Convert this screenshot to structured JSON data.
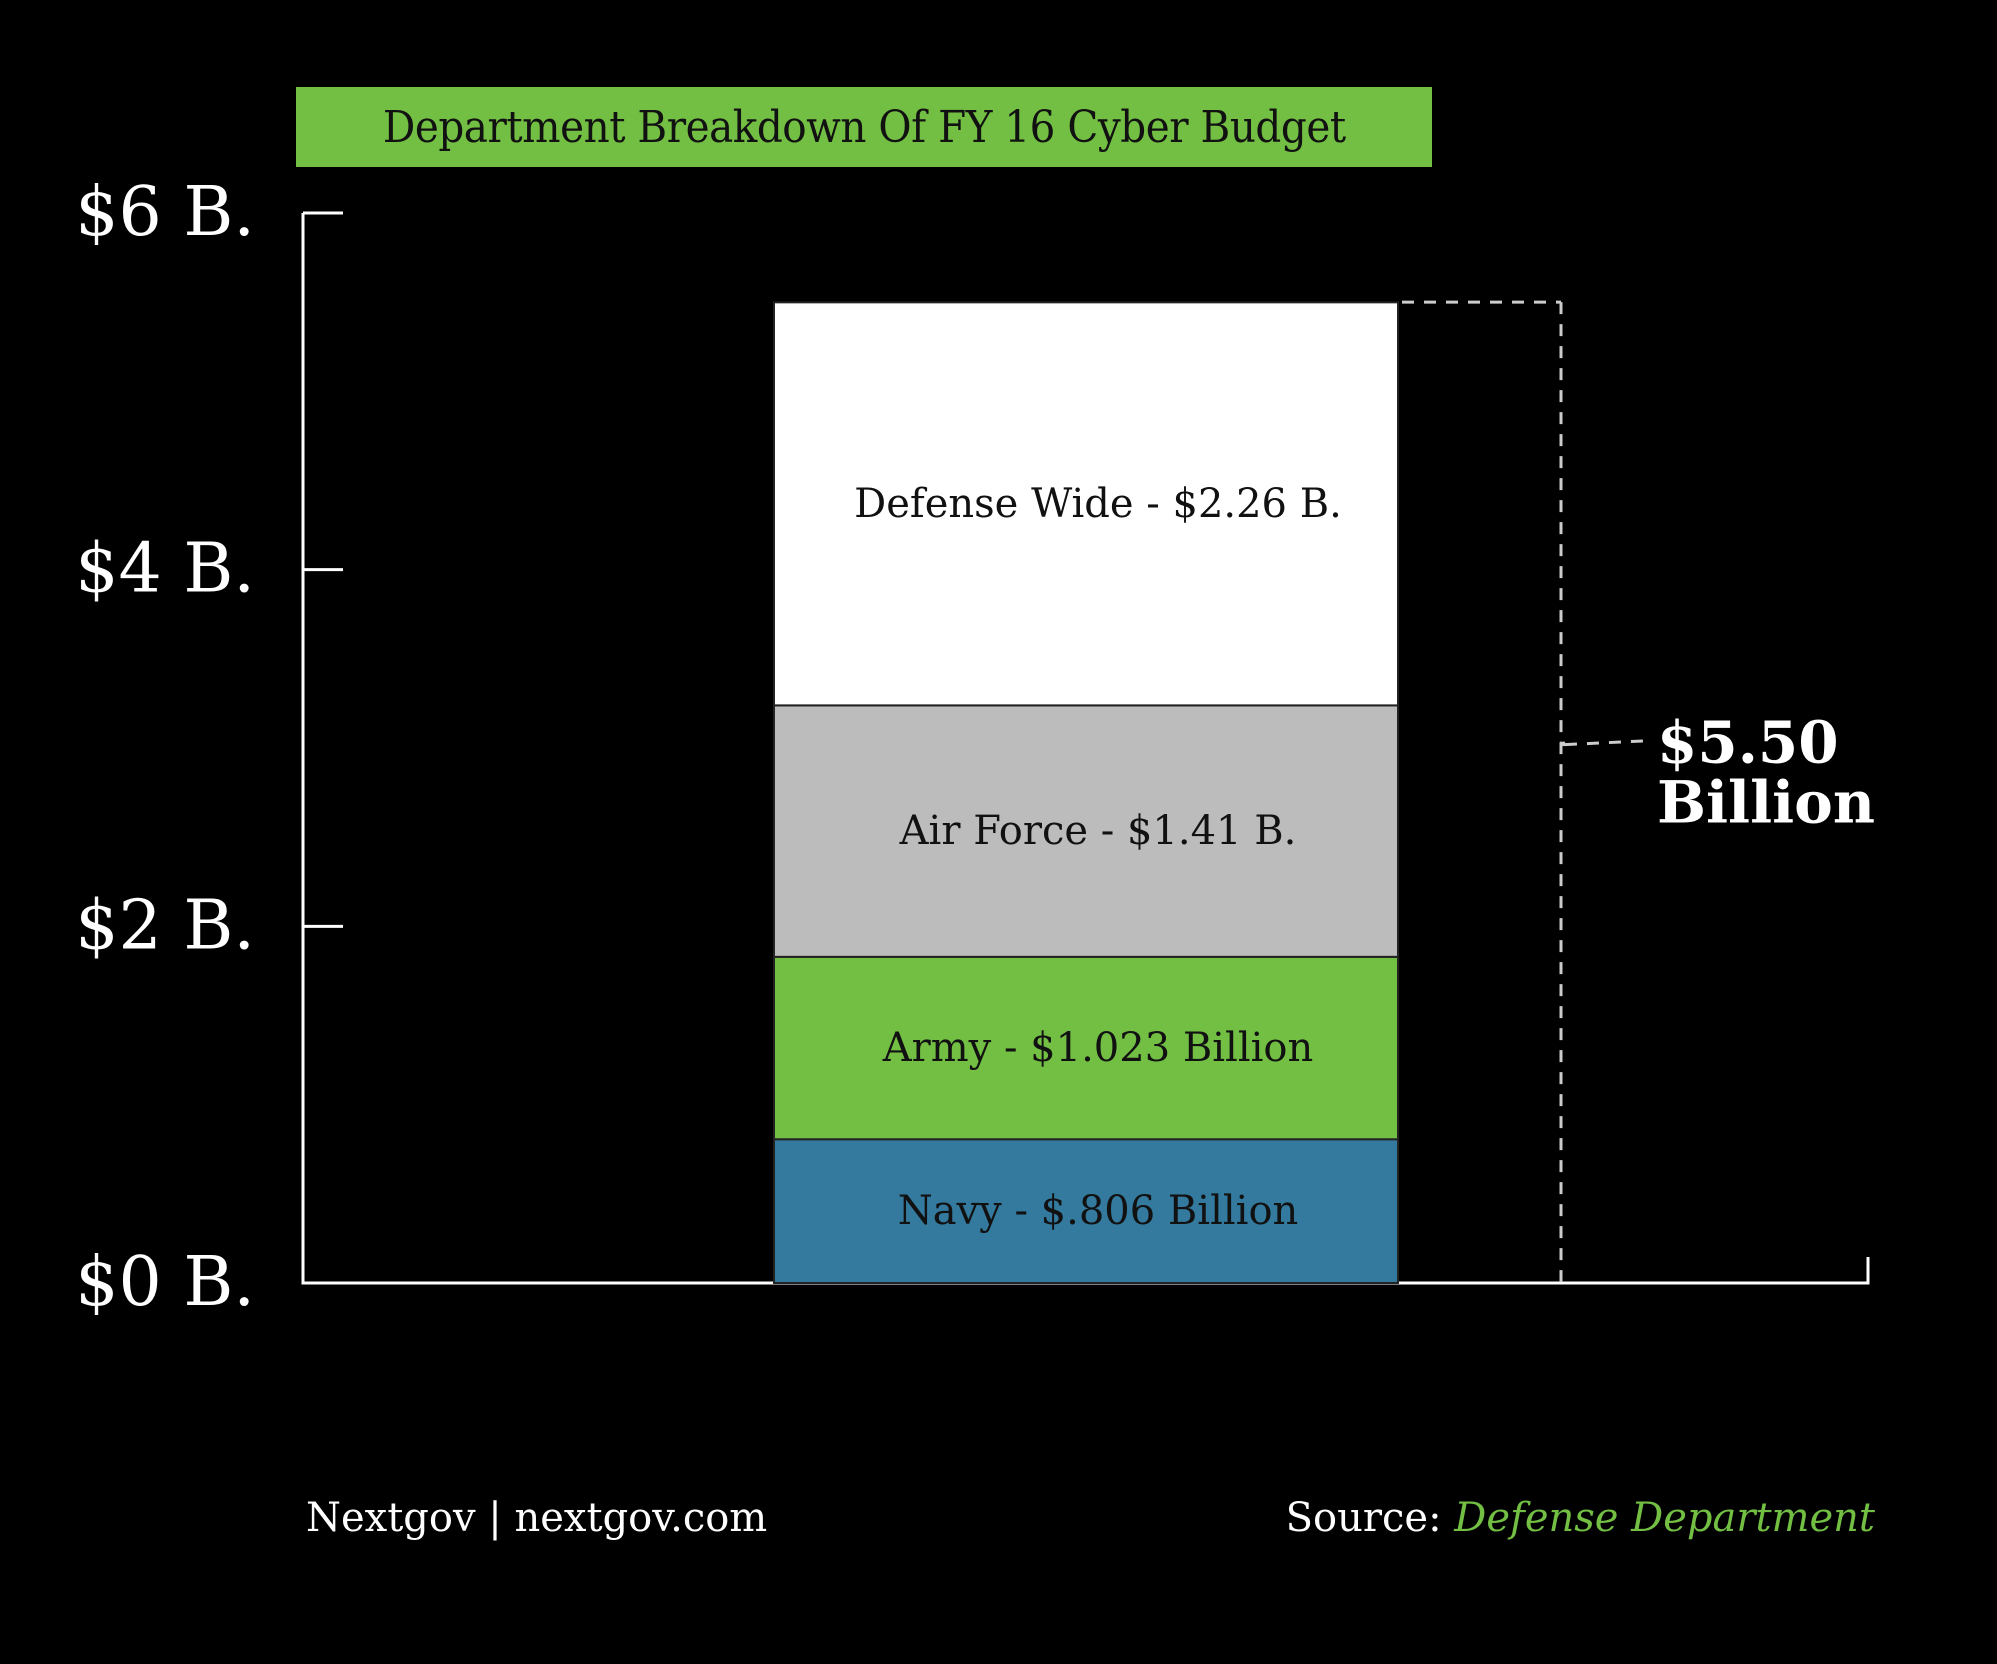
{
  "chart_data": {
    "type": "bar",
    "stacked": true,
    "title": "Department Breakdown Of FY 16 Cyber Budget",
    "xlabel": "",
    "ylabel": "",
    "ylim": [
      0,
      6
    ],
    "yticks": [
      0,
      2,
      4,
      6
    ],
    "ytick_labels": [
      "$0 B.",
      "$2 B.",
      "$4 B.",
      "$6 B."
    ],
    "grid": false,
    "categories": [
      "FY 16"
    ],
    "series": [
      {
        "name": "Navy",
        "values": [
          0.806
        ],
        "label": "Navy - $.806 Billion",
        "color": "#337a9e"
      },
      {
        "name": "Army",
        "values": [
          1.023
        ],
        "label": "Army - $1.023 Billion",
        "color": "#72bf44"
      },
      {
        "name": "Air Force",
        "values": [
          1.41
        ],
        "label": "Air Force - $1.41 B.",
        "color": "#bcbcbc"
      },
      {
        "name": "Defense Wide",
        "values": [
          2.26
        ],
        "label": "Defense Wide - $2.26 B.",
        "color": "#ffffff"
      }
    ],
    "total": {
      "value": 5.5,
      "label_line1": "$5.50",
      "label_line2": "Billion"
    }
  },
  "footer": {
    "credit": "Nextgov | nextgov.com",
    "source_prefix": "Source:",
    "source_name": "Defense Department"
  },
  "colors": {
    "background": "#000000",
    "accent": "#72bf44",
    "axis": "#ffffff",
    "dashed": "#cccccc"
  }
}
